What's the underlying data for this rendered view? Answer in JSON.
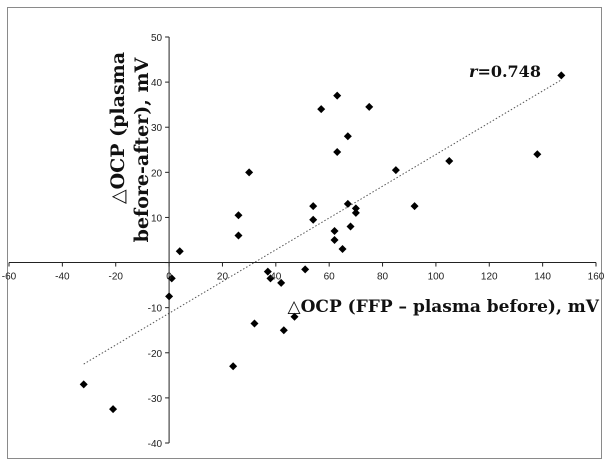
{
  "chart_data": {
    "type": "scatter",
    "title": "",
    "xlabel": "△OCP (FFP – plasma before), mV",
    "ylabel_line1": "△OCP (plasma",
    "ylabel_line2": "before-after), mV",
    "xlim": [
      -60,
      160
    ],
    "ylim": [
      -40,
      50
    ],
    "xticks": [
      -60,
      -40,
      -20,
      0,
      20,
      40,
      60,
      80,
      100,
      120,
      140,
      160
    ],
    "yticks": [
      -40,
      -30,
      -20,
      -10,
      0,
      10,
      20,
      30,
      40,
      50
    ],
    "x_tick_labels": [
      "-60",
      "-40",
      "-20",
      "0",
      "20",
      "40",
      "60",
      "80",
      "100",
      "120",
      "140",
      "160"
    ],
    "y_tick_labels": [
      "-40",
      "-30",
      "-20",
      "-10",
      "0",
      "10",
      "20",
      "30",
      "40",
      "50"
    ],
    "grid": false,
    "annotation_r_symbol": "r",
    "annotation_r_value": "=0.748",
    "marker": "diamond",
    "marker_color": "#000000",
    "trendline": {
      "style": "dotted",
      "color": "#555555",
      "x": [
        -32,
        147
      ],
      "y": [
        -22.5,
        40.5
      ]
    },
    "points": [
      {
        "x": -32,
        "y": -27
      },
      {
        "x": -21,
        "y": -32.5
      },
      {
        "x": 0,
        "y": -7.5
      },
      {
        "x": 1,
        "y": -3.5
      },
      {
        "x": 4,
        "y": 2.5
      },
      {
        "x": 24,
        "y": -23
      },
      {
        "x": 26,
        "y": 10.5
      },
      {
        "x": 26,
        "y": 6
      },
      {
        "x": 30,
        "y": 20
      },
      {
        "x": 32,
        "y": -13.5
      },
      {
        "x": 37,
        "y": -2
      },
      {
        "x": 38,
        "y": -3.5
      },
      {
        "x": 42,
        "y": -4.5
      },
      {
        "x": 43,
        "y": -15
      },
      {
        "x": 47,
        "y": -12
      },
      {
        "x": 51,
        "y": -1.5
      },
      {
        "x": 54,
        "y": 12.5
      },
      {
        "x": 54,
        "y": 9.5
      },
      {
        "x": 57,
        "y": 34
      },
      {
        "x": 62,
        "y": 5
      },
      {
        "x": 62,
        "y": 7
      },
      {
        "x": 63,
        "y": 24.5
      },
      {
        "x": 63,
        "y": 37
      },
      {
        "x": 65,
        "y": 3
      },
      {
        "x": 67,
        "y": 28
      },
      {
        "x": 67,
        "y": 13
      },
      {
        "x": 68,
        "y": 8
      },
      {
        "x": 70,
        "y": 11
      },
      {
        "x": 70,
        "y": 12
      },
      {
        "x": 75,
        "y": 34.5
      },
      {
        "x": 85,
        "y": 20.5
      },
      {
        "x": 92,
        "y": 12.5
      },
      {
        "x": 105,
        "y": 22.5
      },
      {
        "x": 138,
        "y": 24
      },
      {
        "x": 147,
        "y": 41.5
      }
    ]
  }
}
